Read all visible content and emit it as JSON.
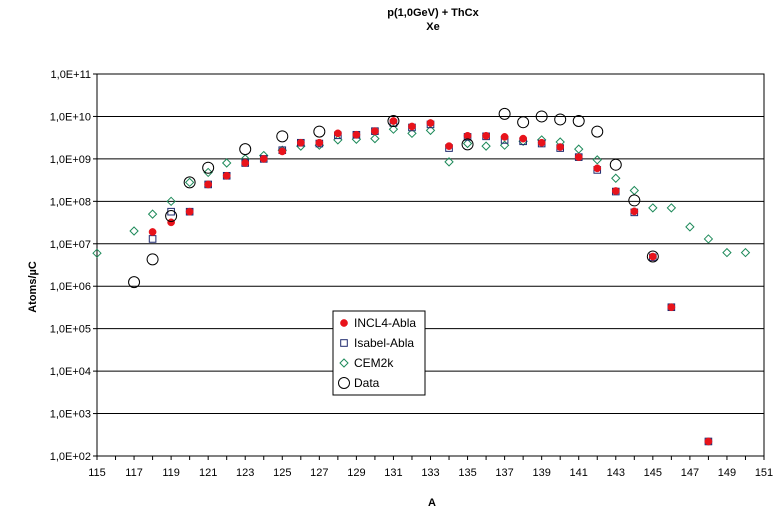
{
  "chart_data": {
    "type": "scatter",
    "title": "p(1,0GeV) + ThCx",
    "subtitle": "Xe",
    "xlabel": "A",
    "ylabel": "Atoms/µC",
    "xlim": [
      115,
      151
    ],
    "ylim": [
      100,
      100000000000
    ],
    "yscale": "log",
    "xticks": [
      "115",
      "117",
      "119",
      "121",
      "123",
      "125",
      "127",
      "129",
      "131",
      "133",
      "135",
      "137",
      "139",
      "141",
      "143",
      "145",
      "147",
      "149",
      "151"
    ],
    "yticks": [
      "1,0E+02",
      "1,0E+03",
      "1,0E+04",
      "1,0E+05",
      "1,0E+06",
      "1,0E+07",
      "1,0E+08",
      "1,0E+09",
      "1,0E+10",
      "1,0E+11"
    ],
    "grid": "horizontal",
    "legend_position": "center-left",
    "series": [
      {
        "name": "INCL4-Abla",
        "marker": "filled-circle",
        "color": "#e8131b",
        "x": [
          118,
          119,
          120,
          121,
          122,
          123,
          124,
          125,
          126,
          127,
          128,
          129,
          130,
          131,
          132,
          133,
          134,
          135,
          136,
          137,
          138,
          139,
          140,
          141,
          142,
          143,
          144,
          145,
          146,
          148
        ],
        "y": [
          19000000.0,
          32000000.0,
          57000000.0,
          250000000.0,
          400000000.0,
          800000000.0,
          1000000000.0,
          1500000000.0,
          2400000000.0,
          2400000000.0,
          4000000000.0,
          3700000000.0,
          4500000000.0,
          7800000000.0,
          5800000000.0,
          7000000000.0,
          2000000000.0,
          3500000000.0,
          3500000000.0,
          3300000000.0,
          3000000000.0,
          2400000000.0,
          1900000000.0,
          1100000000.0,
          600000000.0,
          175000000.0,
          58000000.0,
          5000000.0,
          320000.0,
          220.0
        ]
      },
      {
        "name": "Isabel-Abla",
        "marker": "open-square",
        "color": "#1f2a6e",
        "x": [
          118,
          119,
          120,
          121,
          122,
          123,
          124,
          125,
          126,
          127,
          128,
          129,
          130,
          131,
          132,
          133,
          134,
          135,
          136,
          137,
          138,
          139,
          140,
          141,
          142,
          143,
          144,
          145,
          146,
          148
        ],
        "y": [
          13000000.0,
          57000000.0,
          57000000.0,
          250000000.0,
          400000000.0,
          800000000.0,
          1000000000.0,
          1600000000.0,
          2400000000.0,
          2300000000.0,
          3600000000.0,
          3700000000.0,
          4500000000.0,
          7000000000.0,
          5500000000.0,
          6500000000.0,
          1800000000.0,
          3300000000.0,
          3400000000.0,
          2800000000.0,
          2600000000.0,
          2300000000.0,
          1800000000.0,
          1100000000.0,
          550000000.0,
          170000000.0,
          55000000.0,
          4800000.0,
          320000.0,
          220.0
        ]
      },
      {
        "name": "CEM2k",
        "marker": "open-diamond",
        "color": "#1e8a5a",
        "x": [
          115,
          117,
          118,
          119,
          120,
          121,
          122,
          123,
          124,
          125,
          126,
          127,
          128,
          129,
          130,
          131,
          132,
          133,
          134,
          135,
          136,
          137,
          138,
          139,
          140,
          141,
          142,
          143,
          144,
          145,
          146,
          147,
          148,
          149,
          150
        ],
        "y": [
          6000000.0,
          20000000.0,
          50000000.0,
          100000000.0,
          280000000.0,
          480000000.0,
          800000000.0,
          1000000000.0,
          1200000000.0,
          1600000000.0,
          2000000000.0,
          2100000000.0,
          2800000000.0,
          2900000000.0,
          3000000000.0,
          5000000000.0,
          4000000000.0,
          4700000000.0,
          850000000.0,
          2300000000.0,
          2000000000.0,
          2100000000.0,
          2600000000.0,
          2800000000.0,
          2500000000.0,
          1700000000.0,
          950000000.0,
          350000000.0,
          180000000.0,
          70000000.0,
          70000000.0,
          25000000.0,
          13000000.0,
          6200000.0,
          6200000.0
        ]
      },
      {
        "name": "Data",
        "marker": "open-circle",
        "color": "#000000",
        "x": [
          117,
          118,
          119,
          120,
          121,
          123,
          125,
          127,
          131,
          135,
          137,
          138,
          139,
          140,
          141,
          142,
          143,
          144,
          145
        ],
        "y": [
          1250000.0,
          4300000.0,
          45000000.0,
          280000000.0,
          620000000.0,
          1700000000.0,
          3400000000.0,
          4400000000.0,
          7800000000.0,
          2200000000.0,
          11500000000.0,
          7300000000.0,
          10000000000.0,
          8500000000.0,
          7800000000.0,
          4400000000.0,
          730000000.0,
          105000000.0,
          5000000.0
        ]
      }
    ]
  }
}
